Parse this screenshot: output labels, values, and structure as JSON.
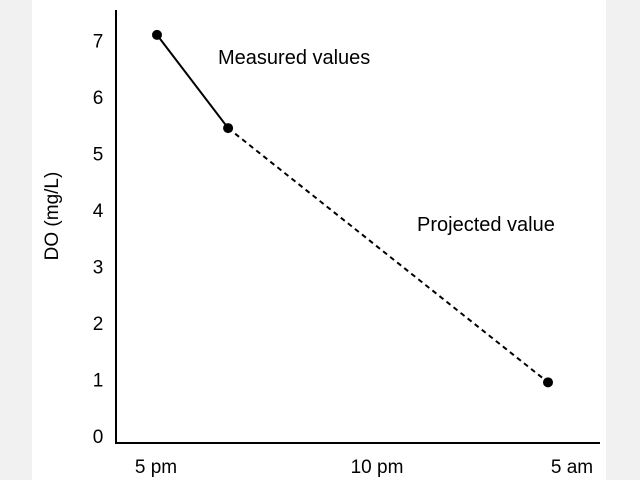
{
  "chart_data": {
    "type": "line",
    "ylabel": "DO (mg/L)",
    "xlabel": "",
    "title": "",
    "x_ticks": [
      "5 pm",
      "10 pm",
      "5 am"
    ],
    "x_tick_hours": [
      17,
      22,
      29
    ],
    "y_ticks": [
      0,
      1,
      2,
      3,
      4,
      5,
      6,
      7
    ],
    "ylim": [
      0,
      7.3
    ],
    "grid": false,
    "series": [
      {
        "name": "Measured values",
        "style": "solid",
        "points": [
          {
            "x": "5 pm",
            "hour": 17,
            "y": 7.1
          },
          {
            "x": "7 pm",
            "hour": 19,
            "y": 5.45
          }
        ]
      },
      {
        "name": "Projected value",
        "style": "dashed",
        "points": [
          {
            "x": "7 pm",
            "hour": 19,
            "y": 5.45
          },
          {
            "x": "4 am",
            "hour": 28,
            "y": 0.95
          }
        ]
      }
    ],
    "annotations": [
      "Measured values",
      "Projected value"
    ]
  }
}
